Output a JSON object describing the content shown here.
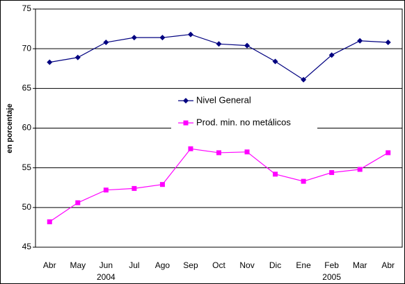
{
  "chart_data": {
    "type": "line",
    "y_label": "en porcentaje",
    "categories": [
      "Abr",
      "May",
      "Jun",
      "Jul",
      "Ago",
      "Sep",
      "Oct",
      "Nov",
      "Dic",
      "Ene",
      "Feb",
      "Mar",
      "Abr"
    ],
    "year_row": [
      null,
      null,
      "2004",
      null,
      null,
      null,
      null,
      null,
      null,
      null,
      "2005",
      null,
      null
    ],
    "series": [
      {
        "name": "Nivel General",
        "color": "#000080",
        "marker": "diamond",
        "values": [
          68.3,
          68.9,
          70.8,
          71.4,
          71.4,
          71.8,
          70.6,
          70.4,
          68.4,
          66.1,
          69.2,
          71.0,
          70.8
        ]
      },
      {
        "name": "Prod. min. no metálicos",
        "color": "#ff00ff",
        "marker": "square",
        "values": [
          48.2,
          50.6,
          52.2,
          52.4,
          52.9,
          57.4,
          56.9,
          57.0,
          54.2,
          53.3,
          54.4,
          54.8,
          56.9
        ]
      }
    ],
    "ylim": [
      45,
      75
    ],
    "yticks": [
      45,
      50,
      55,
      60,
      65,
      70,
      75
    ],
    "grid": true
  }
}
